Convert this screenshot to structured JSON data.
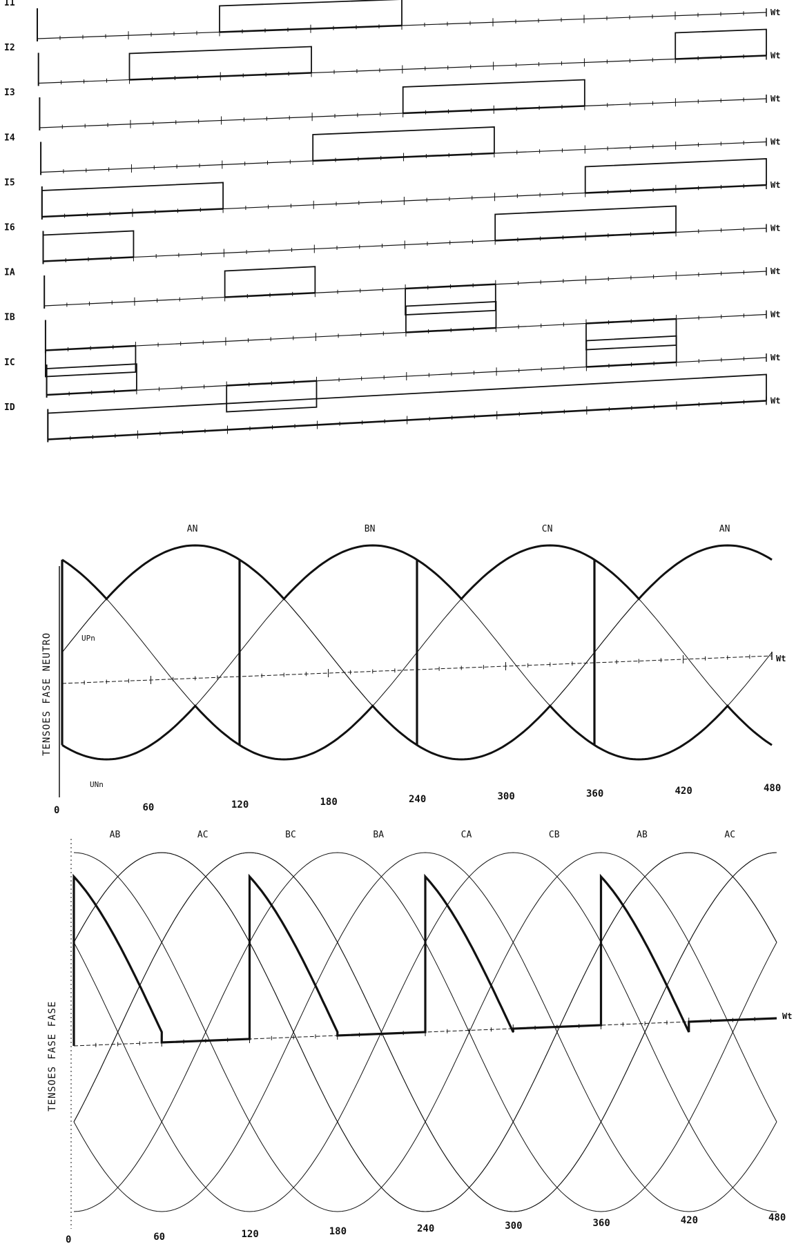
{
  "chart_data": [
    {
      "type": "line",
      "name": "pulse-diagram",
      "signals": [
        {
          "label": "I1",
          "high": [
            [
              120,
              240
            ]
          ],
          "low": []
        },
        {
          "label": "I2",
          "high": [
            [
              60,
              180
            ],
            [
              420,
              480
            ]
          ],
          "low": []
        },
        {
          "label": "I3",
          "high": [
            [
              240,
              360
            ]
          ],
          "low": []
        },
        {
          "label": "I4",
          "high": [
            [
              180,
              300
            ]
          ],
          "low": []
        },
        {
          "label": "I5",
          "high": [
            [
              0,
              120
            ],
            [
              360,
              480
            ]
          ],
          "low": []
        },
        {
          "label": "I6",
          "high": [
            [
              0,
              60
            ],
            [
              300,
              420
            ]
          ],
          "low": []
        },
        {
          "label": "IA",
          "high": [
            [
              120,
              180
            ]
          ],
          "low": [
            [
              240,
              300
            ]
          ]
        },
        {
          "label": "IB",
          "high": [
            [
              240,
              300
            ]
          ],
          "low": [
            [
              0,
              60
            ],
            [
              360,
              420
            ]
          ]
        },
        {
          "label": "IC",
          "high": [
            [
              0,
              60
            ],
            [
              360,
              420
            ]
          ],
          "low": [
            [
              120,
              180
            ]
          ]
        },
        {
          "label": "ID",
          "high": [
            [
              0,
              480
            ]
          ],
          "low": []
        }
      ],
      "axis_label": "Wt",
      "xlim": [
        0,
        480
      ]
    },
    {
      "type": "line",
      "name": "phase-neutral",
      "ylabel": "TENSOES FASE NEUTRO",
      "xlabel": "Wt",
      "x_ticks": [
        "0",
        "60",
        "120",
        "180",
        "240",
        "300",
        "360",
        "420",
        "480"
      ],
      "xlim": [
        0,
        480
      ],
      "series": [
        {
          "name": "AN",
          "peak_deg": 90
        },
        {
          "name": "BN",
          "peak_deg": 210
        },
        {
          "name": "CN",
          "peak_deg": 330
        },
        {
          "name": "AN",
          "peak_deg": 450
        }
      ],
      "annotations": [
        "UPn",
        "UNn"
      ]
    },
    {
      "type": "line",
      "name": "phase-phase",
      "ylabel": "TENSOES FASE FASE",
      "xlabel": "Wt",
      "x_ticks": [
        "0",
        "60",
        "120",
        "180",
        "240",
        "300",
        "360",
        "420",
        "480"
      ],
      "xlim": [
        0,
        480
      ],
      "series": [
        {
          "name": "AB",
          "peak_deg": 60
        },
        {
          "name": "AC",
          "peak_deg": 120
        },
        {
          "name": "BC",
          "peak_deg": 180
        },
        {
          "name": "BA",
          "peak_deg": 240
        },
        {
          "name": "CA",
          "peak_deg": 300
        },
        {
          "name": "CB",
          "peak_deg": 360
        },
        {
          "name": "AB",
          "peak_deg": 420
        },
        {
          "name": "AC",
          "peak_deg": 480
        }
      ]
    }
  ]
}
